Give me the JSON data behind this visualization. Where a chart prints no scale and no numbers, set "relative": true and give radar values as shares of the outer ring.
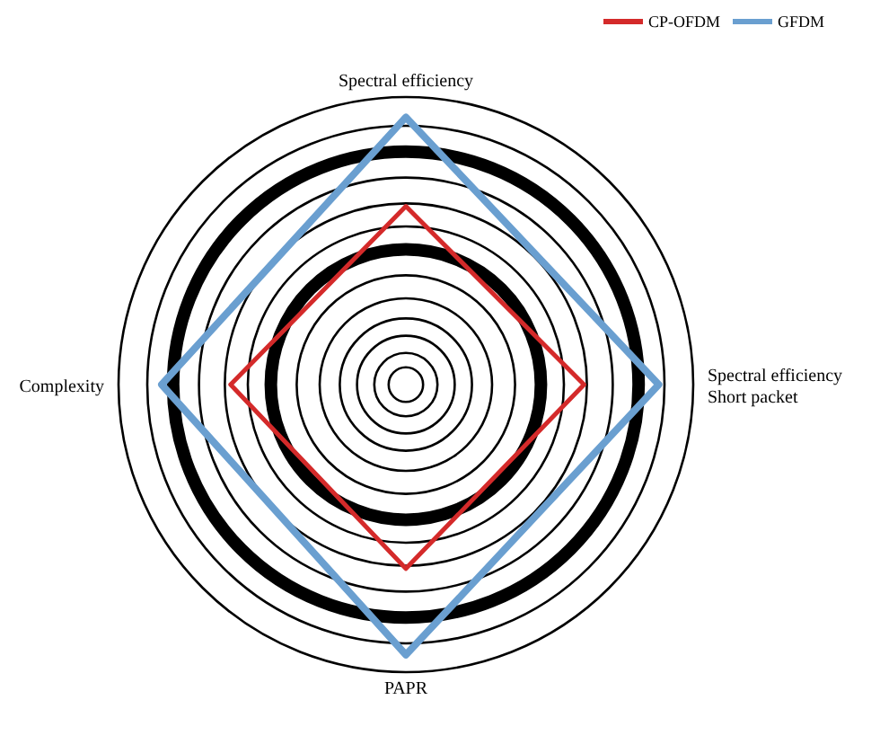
{
  "chart_data": {
    "type": "radar",
    "relative": true,
    "grid": true,
    "legend": "top right",
    "categories": [
      "Spectral efficiency",
      "Spectral efficiency\nShort packet",
      "PAPR",
      "Complexity"
    ],
    "series": [
      {
        "name": "CP-OFDM",
        "color": "#d42a2a",
        "values": [
          0.62,
          0.62,
          0.64,
          0.61
        ]
      },
      {
        "name": "GFDM",
        "color": "#6a9fd0",
        "values": [
          0.93,
          0.88,
          0.94,
          0.85
        ]
      }
    ]
  }
}
